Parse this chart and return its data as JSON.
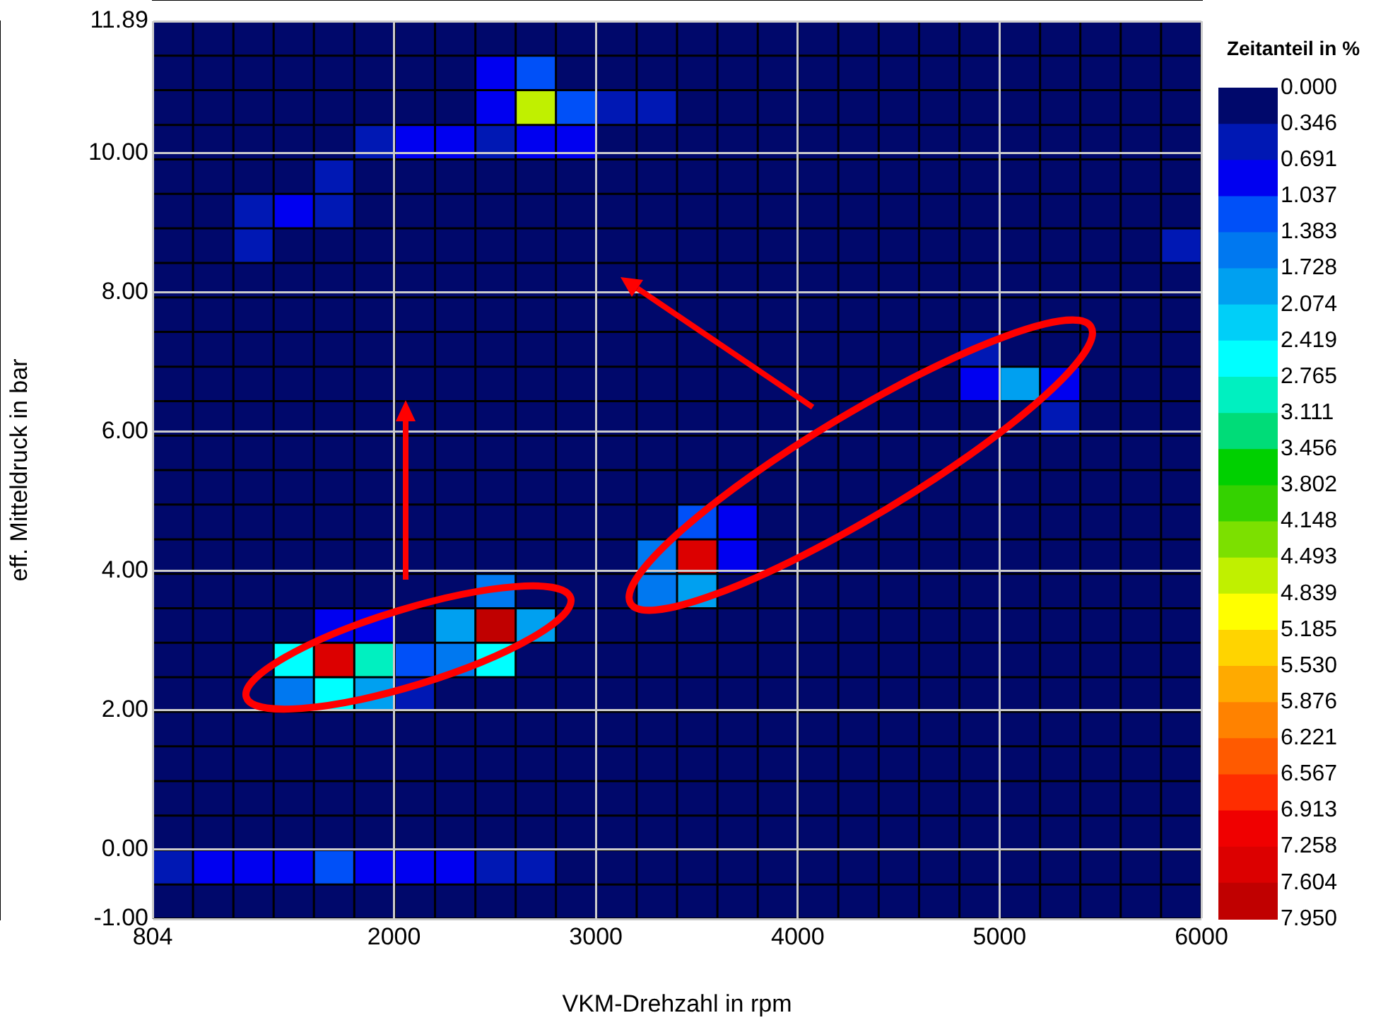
{
  "chart_data": {
    "type": "heatmap",
    "xlabel": "VKM-Drehzahl in rpm",
    "ylabel": "eff. Mitteldruck in bar",
    "clabel": "Zeitanteil in %",
    "x": [
      904,
      1104,
      1304,
      1503,
      1703,
      1903,
      2103,
      2303,
      2503,
      2702,
      2902,
      3102,
      3302,
      3502,
      3702,
      3902,
      4101,
      4301,
      4501,
      4701,
      4901,
      5101,
      5300,
      5500,
      5700,
      5900
    ],
    "y": [
      11.64,
      11.15,
      10.65,
      10.15,
      9.66,
      9.16,
      8.67,
      8.17,
      7.68,
      7.18,
      6.68,
      6.19,
      5.69,
      5.2,
      4.7,
      4.2,
      3.71,
      3.21,
      2.72,
      2.22,
      1.73,
      1.23,
      0.73,
      0.24,
      -0.26,
      -0.75
    ],
    "cells": [
      [
        0,
        0,
        0,
        0,
        0,
        0,
        0,
        0,
        0,
        0,
        0,
        0,
        0,
        0,
        0,
        0,
        0,
        0,
        0,
        0,
        0,
        0,
        0,
        0,
        0,
        0
      ],
      [
        0,
        0,
        0,
        0,
        0,
        0,
        0,
        0,
        0.8,
        1.2,
        0,
        0,
        0,
        0,
        0,
        0,
        0,
        0,
        0,
        0,
        0,
        0,
        0,
        0,
        0,
        0
      ],
      [
        0,
        0,
        0,
        0,
        0,
        0,
        0,
        0,
        1,
        4.6,
        1.2,
        0.6,
        0.6,
        0,
        0,
        0,
        0,
        0,
        0,
        0,
        0,
        0,
        0,
        0,
        0,
        0
      ],
      [
        0,
        0,
        0,
        0,
        0,
        0.6,
        0.8,
        0.8,
        0.5,
        1,
        0.8,
        0,
        0,
        0,
        0,
        0,
        0,
        0,
        0,
        0,
        0,
        0,
        0,
        0,
        0,
        0
      ],
      [
        0,
        0,
        0,
        0,
        0.6,
        0,
        0,
        0,
        0,
        0,
        0,
        0,
        0,
        0,
        0,
        0,
        0,
        0,
        0,
        0,
        0,
        0,
        0,
        0,
        0,
        0
      ],
      [
        0,
        0,
        0.5,
        1,
        0.6,
        0,
        0,
        0,
        0,
        0,
        0,
        0,
        0,
        0,
        0,
        0,
        0,
        0,
        0,
        0,
        0,
        0,
        0,
        0,
        0,
        0
      ],
      [
        0,
        0,
        0.5,
        0,
        0,
        0,
        0,
        0,
        0,
        0,
        0,
        0,
        0,
        0,
        0,
        0,
        0,
        0,
        0,
        0,
        0,
        0,
        0,
        0,
        0,
        0.5
      ],
      [
        0,
        0,
        0,
        0,
        0,
        0,
        0,
        0,
        0,
        0,
        0,
        0,
        0,
        0,
        0,
        0,
        0,
        0,
        0,
        0,
        0,
        0,
        0,
        0,
        0,
        0
      ],
      [
        0,
        0,
        0,
        0,
        0,
        0,
        0,
        0,
        0,
        0,
        0,
        0,
        0,
        0,
        0,
        0,
        0,
        0,
        0,
        0,
        0,
        0,
        0,
        0,
        0,
        0
      ],
      [
        0,
        0,
        0,
        0,
        0,
        0,
        0,
        0,
        0,
        0,
        0,
        0,
        0,
        0,
        0,
        0,
        0,
        0,
        0,
        0,
        0.6,
        0,
        0,
        0,
        0,
        0
      ],
      [
        0,
        0,
        0,
        0,
        0,
        0,
        0,
        0,
        0,
        0,
        0,
        0,
        0,
        0,
        0,
        0,
        0,
        0,
        0,
        0,
        1,
        1.9,
        0.8,
        0,
        0,
        0
      ],
      [
        0,
        0,
        0,
        0,
        0,
        0,
        0,
        0,
        0,
        0,
        0,
        0,
        0,
        0,
        0,
        0,
        0,
        0,
        0,
        0,
        0,
        0,
        0.6,
        0,
        0,
        0
      ],
      [
        0,
        0,
        0,
        0,
        0,
        0,
        0,
        0,
        0,
        0,
        0,
        0,
        0,
        0,
        0,
        0,
        0,
        0,
        0,
        0,
        0,
        0,
        0,
        0,
        0,
        0
      ],
      [
        0,
        0,
        0,
        0,
        0,
        0,
        0,
        0,
        0,
        0,
        0,
        0,
        0,
        0,
        0,
        0,
        0,
        0,
        0,
        0,
        0,
        0,
        0,
        0,
        0,
        0
      ],
      [
        0,
        0,
        0,
        0,
        0,
        0,
        0,
        0,
        0,
        0,
        0,
        0,
        0,
        1.2,
        0.8,
        0,
        0,
        0,
        0,
        0,
        0,
        0,
        0,
        0,
        0,
        0
      ],
      [
        0,
        0,
        0,
        0,
        0,
        0,
        0,
        0,
        0,
        0,
        0,
        0,
        1.5,
        7.3,
        1,
        0,
        0,
        0,
        0,
        0,
        0,
        0,
        0,
        0,
        0,
        0
      ],
      [
        0,
        0,
        0,
        0,
        0,
        0,
        0,
        0,
        1.5,
        0,
        0,
        0,
        1.5,
        2,
        0,
        0,
        0,
        0,
        0,
        0,
        0,
        0,
        0,
        0,
        0,
        0
      ],
      [
        0,
        0,
        0,
        0,
        1,
        1,
        0,
        2,
        7.9,
        2,
        0,
        0,
        0,
        0,
        0,
        0,
        0,
        0,
        0,
        0,
        0,
        0,
        0,
        0,
        0,
        0
      ],
      [
        0,
        0,
        0,
        2.5,
        7.6,
        3,
        1.2,
        1.5,
        2.5,
        0,
        0,
        0,
        0,
        0,
        0,
        0,
        0,
        0,
        0,
        0,
        0,
        0,
        0,
        0,
        0,
        0
      ],
      [
        0,
        0,
        0,
        1.5,
        2.5,
        2,
        0.5,
        0,
        0,
        0,
        0,
        0,
        0,
        0,
        0,
        0,
        0,
        0,
        0,
        0,
        0,
        0,
        0,
        0,
        0,
        0
      ],
      [
        0,
        0,
        0,
        0,
        0,
        0,
        0,
        0,
        0,
        0,
        0,
        0,
        0,
        0,
        0,
        0,
        0,
        0,
        0,
        0,
        0,
        0,
        0,
        0,
        0,
        0
      ],
      [
        0,
        0,
        0,
        0,
        0,
        0,
        0,
        0,
        0,
        0,
        0,
        0,
        0,
        0,
        0,
        0,
        0,
        0,
        0,
        0,
        0,
        0,
        0,
        0,
        0,
        0
      ],
      [
        0,
        0,
        0,
        0,
        0,
        0,
        0,
        0,
        0,
        0,
        0,
        0,
        0,
        0,
        0,
        0,
        0,
        0,
        0,
        0,
        0,
        0,
        0,
        0,
        0,
        0
      ],
      [
        0,
        0,
        0,
        0,
        0,
        0,
        0,
        0,
        0,
        0,
        0,
        0,
        0,
        0,
        0,
        0,
        0,
        0,
        0,
        0,
        0,
        0,
        0,
        0,
        0,
        0
      ],
      [
        0.5,
        0.7,
        0.7,
        0.9,
        1.2,
        0.9,
        0.7,
        0.7,
        0.5,
        0.5,
        0,
        0,
        0,
        0,
        0,
        0,
        0,
        0,
        0,
        0,
        0,
        0,
        0,
        0,
        0,
        0
      ],
      [
        0,
        0,
        0,
        0,
        0,
        0,
        0,
        0,
        0,
        0,
        0,
        0,
        0,
        0,
        0,
        0,
        0,
        0,
        0,
        0,
        0,
        0,
        0,
        0,
        0,
        0
      ]
    ],
    "xlim": [
      804,
      6000
    ],
    "xticks": [
      804,
      2000,
      3000,
      4000,
      5000,
      6000
    ],
    "ylim": [
      -1,
      11.89
    ],
    "yticks": [
      {
        "value": -1,
        "label": "-1.00"
      },
      {
        "value": 0,
        "label": "0.00"
      },
      {
        "value": 2,
        "label": "2.00"
      },
      {
        "value": 4,
        "label": "4.00"
      },
      {
        "value": 6,
        "label": "6.00"
      },
      {
        "value": 8,
        "label": "8.00"
      },
      {
        "value": 10,
        "label": "10.00"
      },
      {
        "value": 11.89,
        "label": "11.89"
      }
    ],
    "clim": [
      0,
      7.95
    ],
    "cticks": [
      {
        "value": 0,
        "label": "0.000"
      },
      {
        "value": 0.346,
        "label": "0.346"
      },
      {
        "value": 0.691,
        "label": "0.691"
      },
      {
        "value": 1.037,
        "label": "1.037"
      },
      {
        "value": 1.383,
        "label": "1.383"
      },
      {
        "value": 1.728,
        "label": "1.728"
      },
      {
        "value": 2.074,
        "label": "2.074"
      },
      {
        "value": 2.419,
        "label": "2.419"
      },
      {
        "value": 2.765,
        "label": "2.765"
      },
      {
        "value": 3.111,
        "label": "3.111"
      },
      {
        "value": 3.456,
        "label": "3.456"
      },
      {
        "value": 3.802,
        "label": "3.802"
      },
      {
        "value": 4.148,
        "label": "4.148"
      },
      {
        "value": 4.493,
        "label": "4.493"
      },
      {
        "value": 4.839,
        "label": "4.839"
      },
      {
        "value": 5.185,
        "label": "5.185"
      },
      {
        "value": 5.53,
        "label": "5.530"
      },
      {
        "value": 5.876,
        "label": "5.876"
      },
      {
        "value": 6.221,
        "label": "6.221"
      },
      {
        "value": 6.567,
        "label": "6.567"
      },
      {
        "value": 6.913,
        "label": "6.913"
      },
      {
        "value": 7.258,
        "label": "7.258"
      },
      {
        "value": 7.604,
        "label": "7.604"
      },
      {
        "value": 7.95,
        "label": "7.950"
      }
    ],
    "grid": true,
    "legend": false
  }
}
